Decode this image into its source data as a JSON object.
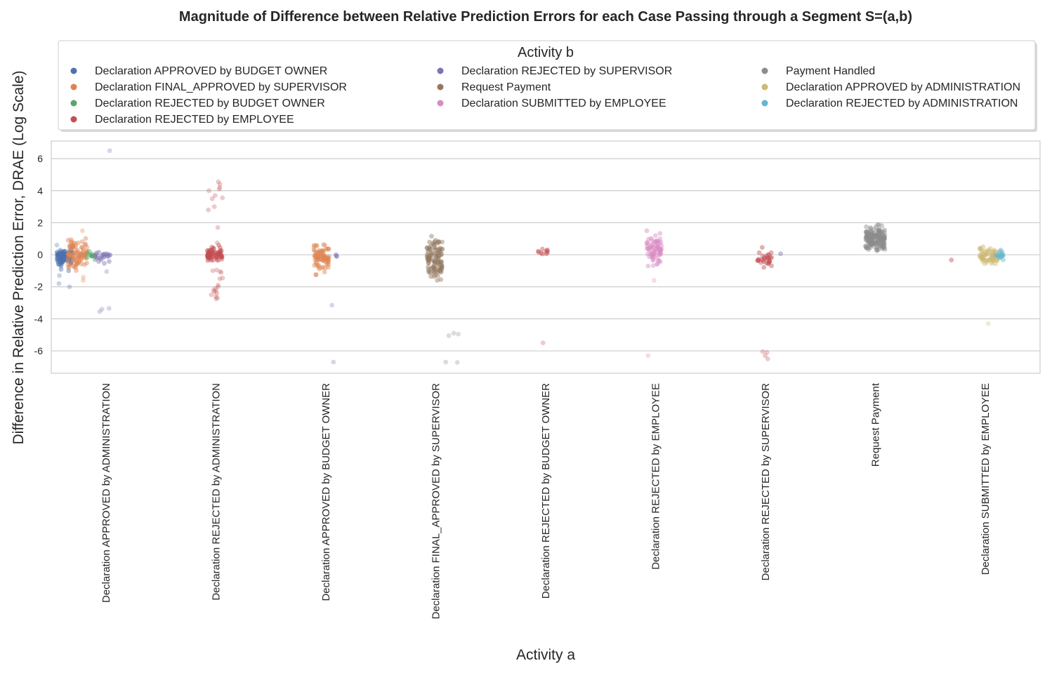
{
  "chart_data": {
    "type": "scatter",
    "title": "Magnitude of Difference between Relative Prediction Errors for each Case Passing through a Segment S=(a,b)",
    "xlabel": "Activity a",
    "ylabel": "Difference in Relative Prediction Error, DRAE (Log Scale)",
    "ylim": [
      -7.4,
      7.1
    ],
    "yticks": [
      -6,
      -4,
      -2,
      0,
      2,
      4,
      6
    ],
    "grid": true,
    "categories": [
      "Declaration APPROVED by ADMINISTRATION",
      "Declaration REJECTED by ADMINISTRATION",
      "Declaration APPROVED by BUDGET OWNER",
      "Declaration FINAL_APPROVED by SUPERVISOR",
      "Declaration REJECTED by BUDGET OWNER",
      "Declaration REJECTED by EMPLOYEE",
      "Declaration REJECTED by SUPERVISOR",
      "Request Payment",
      "Declaration SUBMITTED by EMPLOYEE"
    ],
    "legend": {
      "title": "Activity b",
      "placement": "top",
      "entries": [
        {
          "name": "Declaration APPROVED by BUDGET OWNER",
          "color": "#4c72b0"
        },
        {
          "name": "Declaration FINAL_APPROVED by SUPERVISOR",
          "color": "#dd8452"
        },
        {
          "name": "Declaration REJECTED by BUDGET OWNER",
          "color": "#55a868"
        },
        {
          "name": "Declaration REJECTED by EMPLOYEE",
          "color": "#c44e52"
        },
        {
          "name": "Declaration REJECTED by SUPERVISOR",
          "color": "#8172b3"
        },
        {
          "name": "Request Payment",
          "color": "#937860"
        },
        {
          "name": "Declaration SUBMITTED by EMPLOYEE",
          "color": "#da8bc3"
        },
        {
          "name": "Payment Handled",
          "color": "#8c8c8c"
        },
        {
          "name": "Declaration APPROVED by ADMINISTRATION",
          "color": "#ccb974"
        },
        {
          "name": "Declaration REJECTED by ADMINISTRATION",
          "color": "#64b5cd"
        }
      ]
    },
    "groups": [
      {
        "category": 0,
        "series": 0,
        "offset": -0.38,
        "spread": 0.07,
        "center": [
          -1,
          0.6
        ],
        "count": 90,
        "outliers": [
          -1.8,
          -2.0,
          -1.3,
          0.6
        ]
      },
      {
        "category": 0,
        "series": 1,
        "offset": -0.26,
        "spread": 0.09,
        "center": [
          -1.2,
          1.2
        ],
        "count": 90,
        "outliers": [
          1.5,
          -1.6,
          -1.4
        ]
      },
      {
        "category": 0,
        "series": 2,
        "offset": -0.14,
        "spread": 0.04,
        "center": [
          -0.4,
          0.3
        ],
        "count": 12,
        "outliers": []
      },
      {
        "category": 0,
        "series": 4,
        "offset": -0.03,
        "spread": 0.07,
        "center": [
          -0.6,
          0.4
        ],
        "count": 22,
        "outliers": [
          6.5,
          -3.35,
          -3.4,
          -3.55,
          -1.05
        ]
      },
      {
        "category": 1,
        "series": 3,
        "offset": -0.01,
        "spread": 0.07,
        "center": [
          -0.6,
          0.6
        ],
        "count": 70,
        "outliers": [
          4.55,
          4.4,
          4.2,
          4.1,
          4.0,
          3.7,
          3.55,
          3.5,
          3.0,
          2.8,
          1.7,
          0.75,
          -0.95,
          -1.0,
          -1.05,
          -1.1,
          -1.45,
          -1.5,
          -1.9,
          -2.0,
          -2.1,
          -2.2,
          -2.25,
          -2.3,
          -2.4,
          -2.5,
          -2.6,
          -2.7,
          -2.75
        ]
      },
      {
        "category": 2,
        "series": 1,
        "offset": -0.04,
        "spread": 0.07,
        "center": [
          -1.3,
          1.0
        ],
        "count": 80,
        "outliers": []
      },
      {
        "category": 2,
        "series": 4,
        "offset": 0.07,
        "spread": 0.04,
        "center": [
          -0.2,
          0.1
        ],
        "count": 3,
        "outliers": [
          -3.15,
          -6.7
        ]
      },
      {
        "category": 3,
        "series": 5,
        "offset": -0.01,
        "spread": 0.07,
        "center": [
          -1.9,
          1.3
        ],
        "count": 110,
        "outliers": []
      },
      {
        "category": 3,
        "series": 7,
        "offset": 0.15,
        "spread": 0.06,
        "center": [
          -5.2,
          -4.9
        ],
        "count": 0,
        "outliers": [
          -4.95,
          -5.05,
          -4.9,
          -6.7,
          -6.72
        ]
      },
      {
        "category": 4,
        "series": 3,
        "offset": -0.03,
        "spread": 0.05,
        "center": [
          -0.1,
          0.4
        ],
        "count": 10,
        "outliers": [
          -5.5
        ]
      },
      {
        "category": 5,
        "series": 6,
        "offset": -0.01,
        "spread": 0.07,
        "center": [
          -1.0,
          1.5
        ],
        "count": 75,
        "outliers": [
          -1.6,
          -6.3
        ]
      },
      {
        "category": 6,
        "series": 3,
        "offset": -0.01,
        "spread": 0.07,
        "center": [
          -1.0,
          0.5
        ],
        "count": 30,
        "outliers": [
          -6.1,
          -6.3,
          -6.5,
          -6.05
        ]
      },
      {
        "category": 6,
        "series": 4,
        "offset": 0.13,
        "spread": 0.01,
        "center": [
          0.05,
          0.1
        ],
        "count": 1,
        "outliers": []
      },
      {
        "category": 7,
        "series": 7,
        "offset": 0.0,
        "spread": 0.09,
        "center": [
          0.0,
          2.0
        ],
        "count": 160,
        "outliers": []
      },
      {
        "category": 8,
        "series": 3,
        "offset": -0.3,
        "spread": 0.01,
        "center": [
          -0.35,
          -0.3
        ],
        "count": 1,
        "outliers": []
      },
      {
        "category": 8,
        "series": 8,
        "offset": 0.03,
        "spread": 0.08,
        "center": [
          -0.6,
          0.5
        ],
        "count": 60,
        "outliers": [
          -4.3
        ]
      },
      {
        "category": 8,
        "series": 9,
        "offset": 0.12,
        "spread": 0.05,
        "center": [
          -0.35,
          0.35
        ],
        "count": 18,
        "outliers": []
      }
    ]
  }
}
